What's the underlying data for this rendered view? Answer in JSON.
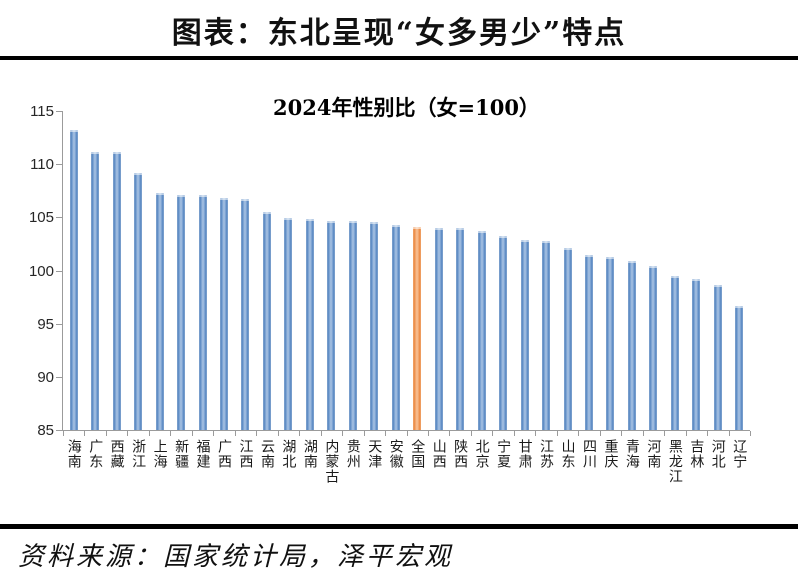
{
  "header": {
    "title": "图表：东北呈现“女多男少”特点"
  },
  "chart_data": {
    "type": "bar",
    "title": "2024年性别比（女=100）",
    "categories": [
      "海南",
      "广东",
      "西藏",
      "浙江",
      "上海",
      "新疆",
      "福建",
      "广西",
      "江西",
      "云南",
      "湖北",
      "湖南",
      "内蒙古",
      "贵州",
      "天津",
      "安徽",
      "全国",
      "山西",
      "陕西",
      "北京",
      "宁夏",
      "甘肃",
      "江苏",
      "山东",
      "四川",
      "重庆",
      "青海",
      "河南",
      "黑龙江",
      "吉林",
      "河北",
      "辽宁"
    ],
    "values": [
      113.2,
      111.1,
      111.1,
      109.2,
      107.3,
      107.1,
      107.1,
      106.8,
      106.7,
      105.5,
      104.9,
      104.8,
      104.7,
      104.7,
      104.6,
      104.3,
      104.1,
      104.0,
      104.0,
      103.7,
      103.2,
      102.9,
      102.8,
      102.1,
      101.5,
      101.3,
      100.9,
      100.4,
      99.5,
      99.2,
      98.6,
      96.7
    ],
    "highlight_category": "全国",
    "highlight_index": 16,
    "bar_color": "#4F81BD",
    "highlight_color": "#ED7D31",
    "axis_color": "#9b9b9b",
    "ylim": [
      85,
      115
    ],
    "yticks": [
      85,
      90,
      95,
      100,
      105,
      110,
      115
    ],
    "grid": false,
    "legend": "none",
    "xlabel": "",
    "ylabel": ""
  },
  "footer": {
    "source": "资料来源：国家统计局，泽平宏观"
  }
}
